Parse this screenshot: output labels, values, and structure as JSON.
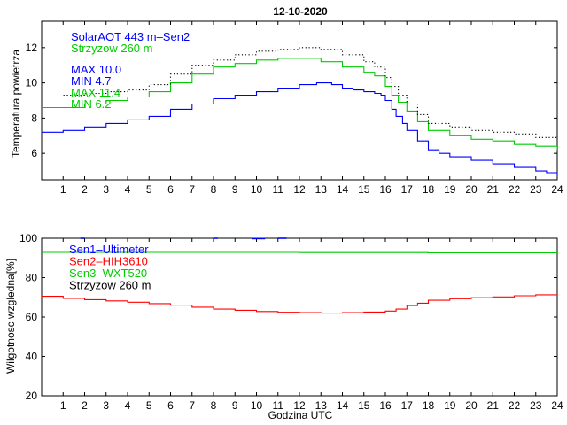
{
  "chart_data": [
    {
      "type": "line",
      "title": "12-10-2020",
      "xlabel": "",
      "ylabel": "Temperatura powietrza",
      "xlim": [
        0,
        24
      ],
      "ylim": [
        4.5,
        13.5
      ],
      "x_ticks": [
        1,
        2,
        3,
        4,
        5,
        6,
        7,
        8,
        9,
        10,
        11,
        12,
        13,
        14,
        15,
        16,
        17,
        18,
        19,
        20,
        21,
        22,
        23,
        24
      ],
      "y_ticks": [
        6,
        8,
        10,
        12
      ],
      "grid": false,
      "legend_position": "top-left",
      "annotations": [
        {
          "text": "SolarAOT 443 m–Sen2",
          "color": "#0000ff"
        },
        {
          "text": "Strzyzow 260 m",
          "color": "#00cc00"
        },
        {
          "text": "MAX 10.0",
          "color": "#0000ff"
        },
        {
          "text": "MIN 4.7",
          "color": "#0000ff"
        },
        {
          "text": "MAX 11.4",
          "color": "#00cc00"
        },
        {
          "text": "MIN 6.2",
          "color": "#00cc00"
        }
      ],
      "series": [
        {
          "color": "#0000ff",
          "style": "solid",
          "x": [
            0,
            1,
            2,
            3,
            4,
            5,
            6,
            7,
            8,
            9,
            10,
            11,
            12,
            12.8,
            13.5,
            14,
            14.5,
            15,
            15.5,
            15.8,
            16,
            16.3,
            16.5,
            16.8,
            17,
            17.5,
            18,
            18.5,
            19,
            20,
            21,
            22,
            23,
            23.5,
            24
          ],
          "y": [
            7.2,
            7.3,
            7.5,
            7.7,
            7.9,
            8.1,
            8.5,
            8.8,
            9.1,
            9.3,
            9.5,
            9.7,
            9.9,
            10.0,
            9.9,
            9.7,
            9.6,
            9.5,
            9.4,
            9.3,
            9.0,
            8.5,
            8.1,
            7.7,
            7.3,
            6.7,
            6.2,
            6.0,
            5.8,
            5.6,
            5.4,
            5.2,
            5.0,
            4.9,
            4.7
          ]
        },
        {
          "color": "#00cc00",
          "style": "solid",
          "x": [
            0,
            1,
            2,
            3,
            4,
            5,
            6,
            7,
            8,
            9,
            10,
            11,
            12,
            13,
            14,
            15,
            15.5,
            16,
            16.3,
            16.6,
            17,
            17.5,
            18,
            19,
            20,
            21,
            22,
            23,
            24
          ],
          "y": [
            8.6,
            8.6,
            8.8,
            9.0,
            9.2,
            9.5,
            10.0,
            10.5,
            10.9,
            11.1,
            11.3,
            11.4,
            11.4,
            11.2,
            10.9,
            10.6,
            10.4,
            9.8,
            9.3,
            8.9,
            8.4,
            7.8,
            7.3,
            7.0,
            6.8,
            6.7,
            6.5,
            6.4,
            6.2
          ]
        },
        {
          "color": "#000000",
          "style": "dotted",
          "x": [
            0,
            1,
            2,
            3,
            4,
            5,
            6,
            7,
            8,
            9,
            10,
            11,
            12,
            13,
            14,
            15,
            15.5,
            16,
            16.3,
            16.6,
            17,
            17.5,
            18,
            19,
            20,
            21,
            22,
            23,
            24
          ],
          "y": [
            9.2,
            9.3,
            9.4,
            9.5,
            9.6,
            9.9,
            10.5,
            11.0,
            11.3,
            11.6,
            11.8,
            11.9,
            12.0,
            11.9,
            11.6,
            11.2,
            10.9,
            10.3,
            9.8,
            9.3,
            8.8,
            8.2,
            7.7,
            7.5,
            7.3,
            7.2,
            7.1,
            6.9,
            7.1
          ]
        }
      ]
    },
    {
      "type": "line",
      "title": "",
      "xlabel": "Godzina UTC",
      "ylabel": "Wilgotnosc wzgledna[%]",
      "xlim": [
        0,
        24
      ],
      "ylim": [
        20,
        100
      ],
      "x_ticks": [
        1,
        2,
        3,
        4,
        5,
        6,
        7,
        8,
        9,
        10,
        11,
        12,
        13,
        14,
        15,
        16,
        17,
        18,
        19,
        20,
        21,
        22,
        23,
        24
      ],
      "y_ticks": [
        20,
        40,
        60,
        80,
        100
      ],
      "grid": false,
      "legend_position": "top-left",
      "annotations": [
        {
          "text": "Sen1–Ultimeter",
          "color": "#0000ff"
        },
        {
          "text": "Sen2–HIH3610",
          "color": "#ff0000"
        },
        {
          "text": "Sen3–WXT520",
          "color": "#00cc00"
        },
        {
          "text": "Strzyzow 260 m",
          "color": "#000000"
        }
      ],
      "series": [
        {
          "color": "#0000ff",
          "style": "segments",
          "segments": [
            {
              "x": [
                1.8,
                2.0
              ],
              "y": [
                100,
                100
              ]
            },
            {
              "x": [
                8.0,
                8.2
              ],
              "y": [
                100,
                100
              ]
            },
            {
              "x": [
                9.8,
                10.4
              ],
              "y": [
                99.8,
                99.8
              ]
            },
            {
              "x": [
                11.0,
                11.4
              ],
              "y": [
                100,
                100
              ]
            }
          ]
        },
        {
          "color": "#00cc00",
          "style": "solid",
          "x": [
            0,
            6,
            12,
            18,
            24
          ],
          "y": [
            92.8,
            92.8,
            92.7,
            92.6,
            92.5
          ]
        },
        {
          "color": "#ff0000",
          "style": "solid",
          "x": [
            0,
            1,
            2,
            3,
            4,
            5,
            6,
            7,
            8,
            9,
            10,
            11,
            12,
            13,
            14,
            15,
            16,
            16.5,
            17,
            17.5,
            18,
            19,
            20,
            21,
            22,
            23,
            24
          ],
          "y": [
            70.5,
            69.5,
            68.8,
            68.2,
            67.5,
            66.8,
            66.0,
            65.0,
            64.0,
            63.4,
            62.8,
            62.4,
            62.2,
            62.0,
            62.2,
            62.5,
            63.0,
            64.0,
            65.8,
            67.0,
            68.5,
            69.3,
            69.8,
            70.2,
            70.8,
            71.3,
            71.5
          ]
        }
      ]
    }
  ]
}
